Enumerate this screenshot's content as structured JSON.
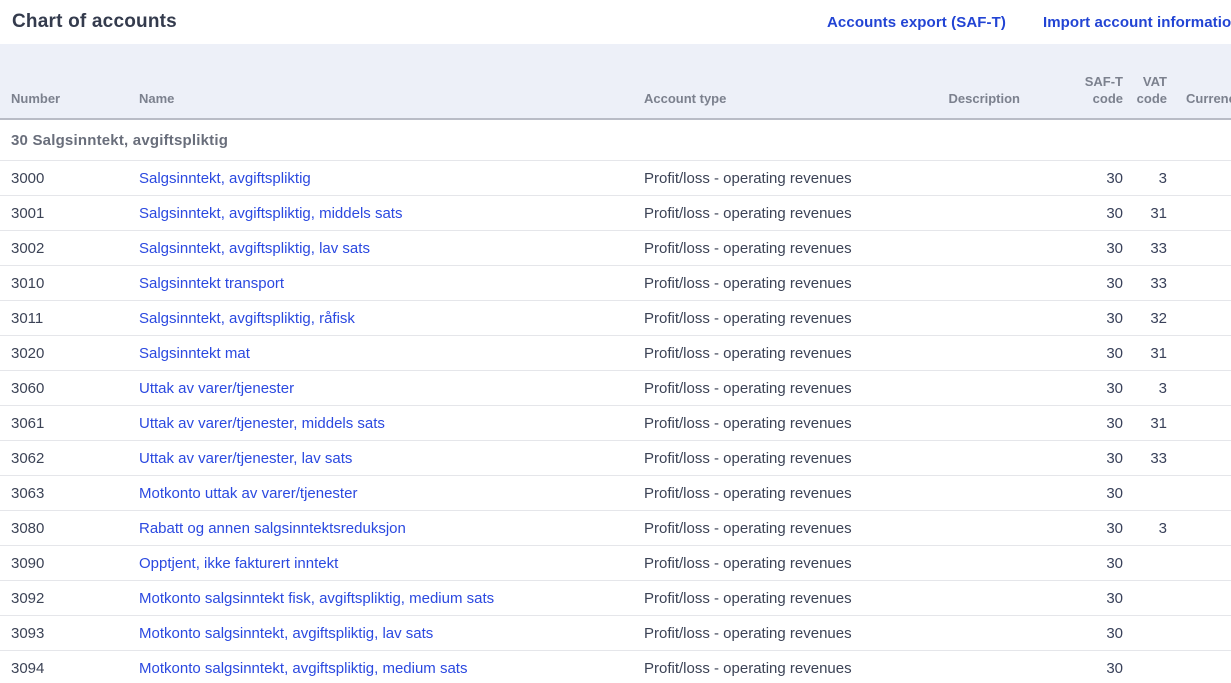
{
  "page": {
    "title": "Chart of accounts"
  },
  "top_links": [
    {
      "label": "Accounts export (SAF-T)"
    },
    {
      "label": "Import account information"
    }
  ],
  "table": {
    "columns": [
      {
        "label": "Number"
      },
      {
        "label": "Name"
      },
      {
        "label": "Account type"
      },
      {
        "label": "Description"
      },
      {
        "label": "SAF-T\ncode"
      },
      {
        "label": "VAT\ncode"
      },
      {
        "label": "Currency"
      }
    ],
    "group": {
      "label": "30 Salgsinntekt, avgiftspliktig"
    },
    "rows": [
      {
        "number": "3000",
        "name": "Salgsinntekt, avgiftspliktig",
        "account_type": "Profit/loss - operating revenues",
        "description": "",
        "saft_code": "30",
        "vat_code": "3",
        "currency": ""
      },
      {
        "number": "3001",
        "name": "Salgsinntekt, avgiftspliktig, middels sats",
        "account_type": "Profit/loss - operating revenues",
        "description": "",
        "saft_code": "30",
        "vat_code": "31",
        "currency": ""
      },
      {
        "number": "3002",
        "name": "Salgsinntekt, avgiftspliktig, lav sats",
        "account_type": "Profit/loss - operating revenues",
        "description": "",
        "saft_code": "30",
        "vat_code": "33",
        "currency": ""
      },
      {
        "number": "3010",
        "name": "Salgsinntekt transport",
        "account_type": "Profit/loss - operating revenues",
        "description": "",
        "saft_code": "30",
        "vat_code": "33",
        "currency": ""
      },
      {
        "number": "3011",
        "name": "Salgsinntekt, avgiftspliktig, råfisk",
        "account_type": "Profit/loss - operating revenues",
        "description": "",
        "saft_code": "30",
        "vat_code": "32",
        "currency": ""
      },
      {
        "number": "3020",
        "name": "Salgsinntekt mat",
        "account_type": "Profit/loss - operating revenues",
        "description": "",
        "saft_code": "30",
        "vat_code": "31",
        "currency": ""
      },
      {
        "number": "3060",
        "name": "Uttak av varer/tjenester",
        "account_type": "Profit/loss - operating revenues",
        "description": "",
        "saft_code": "30",
        "vat_code": "3",
        "currency": ""
      },
      {
        "number": "3061",
        "name": "Uttak av varer/tjenester, middels sats",
        "account_type": "Profit/loss - operating revenues",
        "description": "",
        "saft_code": "30",
        "vat_code": "31",
        "currency": ""
      },
      {
        "number": "3062",
        "name": "Uttak av varer/tjenester, lav sats",
        "account_type": "Profit/loss - operating revenues",
        "description": "",
        "saft_code": "30",
        "vat_code": "33",
        "currency": ""
      },
      {
        "number": "3063",
        "name": "Motkonto uttak av varer/tjenester",
        "account_type": "Profit/loss - operating revenues",
        "description": "",
        "saft_code": "30",
        "vat_code": "",
        "currency": ""
      },
      {
        "number": "3080",
        "name": "Rabatt og annen salgsinntektsreduksjon",
        "account_type": "Profit/loss - operating revenues",
        "description": "",
        "saft_code": "30",
        "vat_code": "3",
        "currency": ""
      },
      {
        "number": "3090",
        "name": "Opptjent, ikke fakturert inntekt",
        "account_type": "Profit/loss - operating revenues",
        "description": "",
        "saft_code": "30",
        "vat_code": "",
        "currency": ""
      },
      {
        "number": "3092",
        "name": "Motkonto salgsinntekt fisk, avgiftspliktig, medium sats",
        "account_type": "Profit/loss - operating revenues",
        "description": "",
        "saft_code": "30",
        "vat_code": "",
        "currency": ""
      },
      {
        "number": "3093",
        "name": "Motkonto salgsinntekt, avgiftspliktig, lav sats",
        "account_type": "Profit/loss - operating revenues",
        "description": "",
        "saft_code": "30",
        "vat_code": "",
        "currency": ""
      },
      {
        "number": "3094",
        "name": "Motkonto salgsinntekt, avgiftspliktig, medium sats",
        "account_type": "Profit/loss - operating revenues",
        "description": "",
        "saft_code": "30",
        "vat_code": "",
        "currency": ""
      }
    ]
  },
  "colors": {
    "link_blue": "#2b49e0",
    "top_link_blue": "#2244d4",
    "header_band_bg": "#edf0f8",
    "header_text": "#7c818e",
    "header_border": "#b9bcc6",
    "row_divider": "#e5e6ea",
    "body_text": "#3c4356",
    "group_text": "#696e7b",
    "title_text": "#343b4d"
  }
}
